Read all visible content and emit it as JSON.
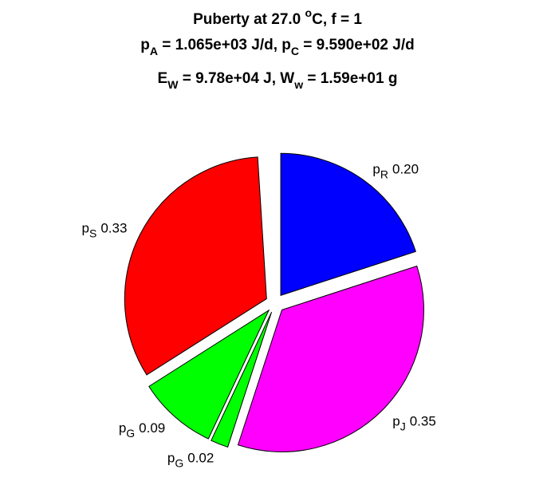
{
  "chart_data": {
    "type": "pie",
    "title": [
      [
        "Puberty at 27.0 ",
        "o",
        "C, f = 1"
      ],
      [
        "p",
        "A",
        " = 1.065e+03 J/d,  p",
        "C",
        " = 9.590e+02 J/d"
      ],
      [
        "E",
        "W",
        " = 9.78e+04 J, W",
        "w",
        " = 1.59e+01 g"
      ]
    ],
    "categories": [
      [
        "p",
        "R"
      ],
      [
        "p",
        "J"
      ],
      [
        "p",
        "G"
      ],
      [
        "p",
        "G"
      ],
      [
        "p",
        "S"
      ]
    ],
    "values": [
      0.2,
      0.35,
      0.02,
      0.09,
      0.33
    ],
    "value_labels": [
      "0.20",
      "0.35",
      "0.02",
      "0.09",
      "0.33"
    ],
    "colors": [
      "#0000ff",
      "#ff00ff",
      "#00ff00",
      "#00ff00",
      "#ff0000"
    ]
  }
}
